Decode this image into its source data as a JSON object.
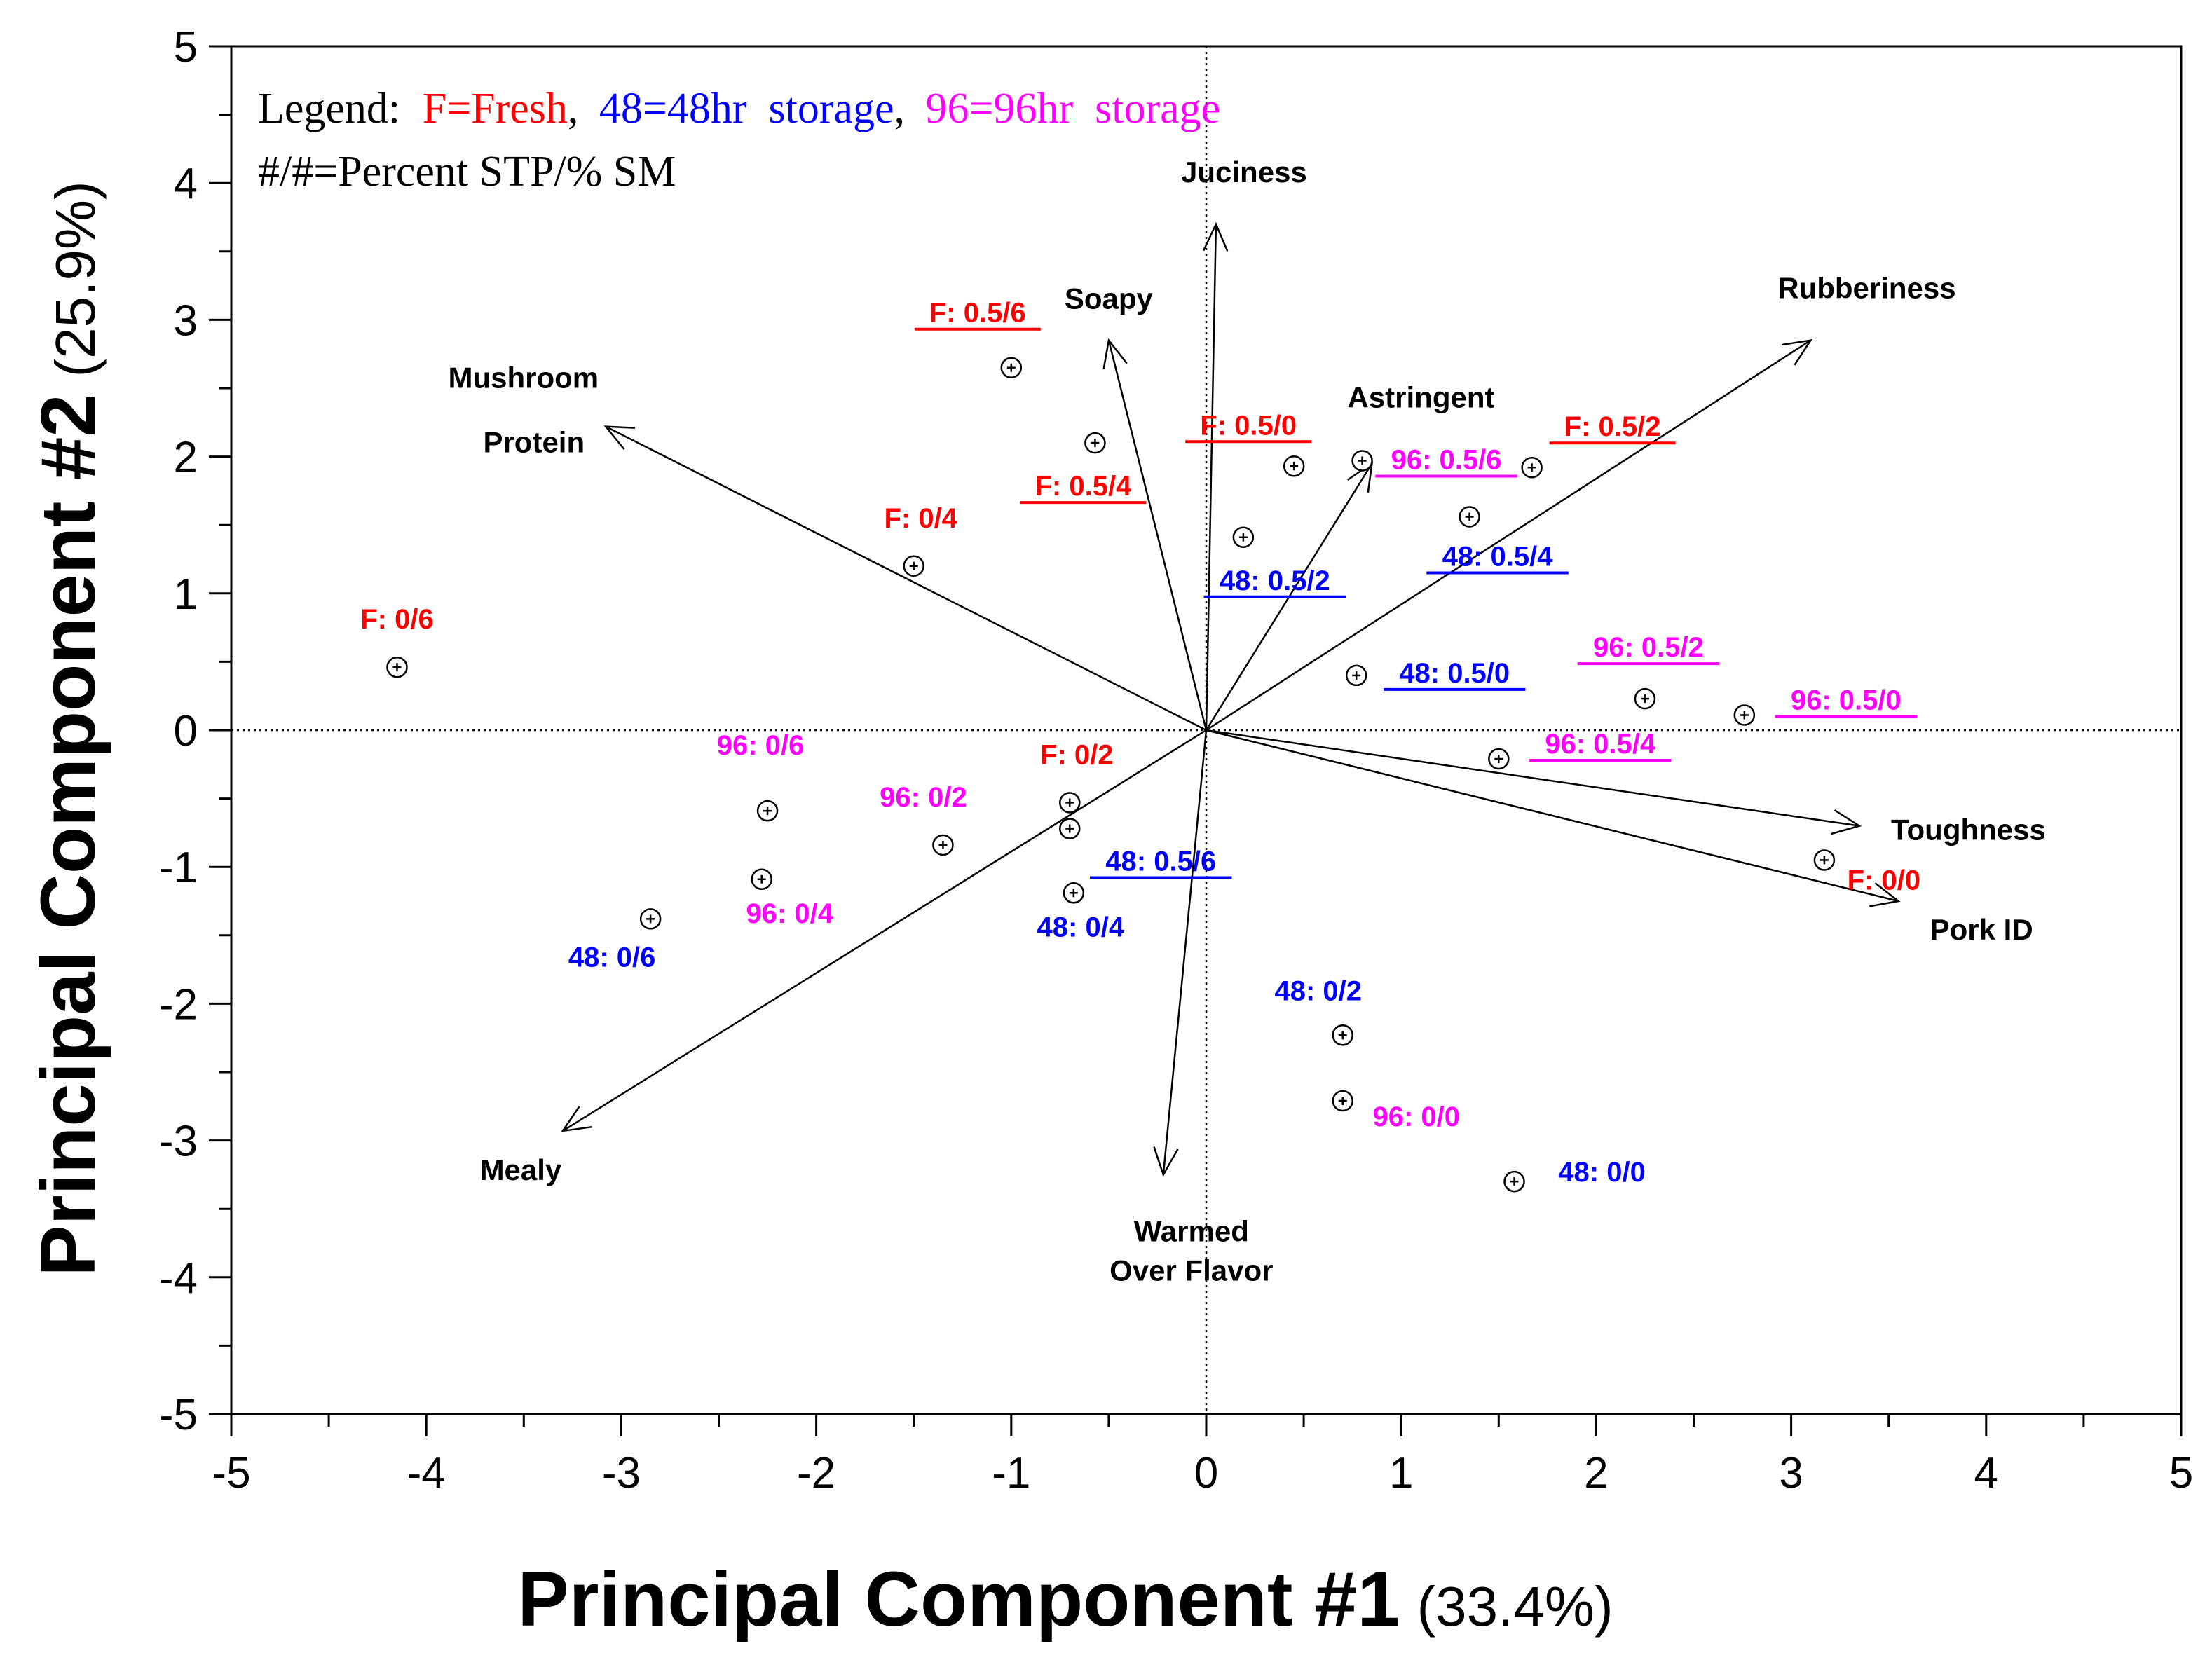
{
  "chart_data": {
    "type": "scatter",
    "subtype": "pca-biplot",
    "xlim": [
      -5,
      5
    ],
    "ylim": [
      -5,
      5
    ],
    "x_ticks": [
      "-5",
      "-4",
      "-3",
      "-2",
      "-1",
      "0",
      "1",
      "2",
      "3",
      "4",
      "5"
    ],
    "y_ticks": [
      "5",
      "4",
      "3",
      "2",
      "1",
      "0",
      "-1",
      "-2",
      "-3",
      "-4",
      "-5"
    ],
    "x_tick_values": [
      -5,
      -4,
      -3,
      -2,
      -1,
      0,
      1,
      2,
      3,
      4,
      5
    ],
    "y_tick_values": [
      5,
      4,
      3,
      2,
      1,
      0,
      -1,
      -2,
      -3,
      -4,
      -5
    ],
    "xlabel": "Principal Component #1",
    "xlabel_pct": "(33.4%)",
    "ylabel": "Principal Component #2",
    "ylabel_pct": "(25.9%)",
    "legend": {
      "prefix": "Legend:",
      "entries": [
        {
          "text": "F=Fresh",
          "color": "#ff0000"
        },
        {
          "text": "48=48hr  storage",
          "color": "#0000ff"
        },
        {
          "text": "96=96hr  storage",
          "color": "#ff00ff"
        }
      ],
      "separator": ",",
      "line2": "#/#=Percent STP/% SM",
      "placement": "top-left"
    },
    "vectors": [
      {
        "name": "Juciness",
        "x": 0.05,
        "y": 3.7
      },
      {
        "name": "Soapy",
        "x": -0.5,
        "y": 2.85
      },
      {
        "name": "Mushroom Protein",
        "lines": [
          "Mushroom",
          "Protein"
        ],
        "x": -3.08,
        "y": 2.22
      },
      {
        "name": "Astringent",
        "x": 0.85,
        "y": 1.95
      },
      {
        "name": "Rubberiness",
        "x": 3.1,
        "y": 2.85
      },
      {
        "name": "Toughness",
        "x": 3.35,
        "y": -0.7
      },
      {
        "name": "Pork ID",
        "x": 3.55,
        "y": -1.25
      },
      {
        "name": "Mealy",
        "x": -3.3,
        "y": -2.93
      },
      {
        "name": "Warmed Over Flavor",
        "lines": [
          "Warmed",
          "Over Flavor"
        ],
        "x": -0.22,
        "y": -3.25
      }
    ],
    "points": [
      {
        "label": "F: 0.5/6",
        "group": "F",
        "x": -1.0,
        "y": 2.65,
        "underline": true
      },
      {
        "label": "F: 0.5/4",
        "group": "F",
        "x": -0.57,
        "y": 2.1,
        "underline": true
      },
      {
        "label": "F: 0.5/0",
        "group": "F",
        "x": 0.45,
        "y": 1.93,
        "underline": true
      },
      {
        "label": "F: 0.5/2",
        "group": "F",
        "x": 1.67,
        "y": 1.92,
        "underline": true
      },
      {
        "label": "F: 0/4",
        "group": "F",
        "x": -1.5,
        "y": 1.2,
        "underline": false
      },
      {
        "label": "F: 0/6",
        "group": "F",
        "x": -4.15,
        "y": 0.46,
        "underline": false
      },
      {
        "label": "F: 0/2",
        "group": "F",
        "x": -0.7,
        "y": -0.53,
        "underline": false
      },
      {
        "label": "F: 0/0",
        "group": "F",
        "x": 3.17,
        "y": -0.95,
        "underline": false
      },
      {
        "label": "96: 0.5/6",
        "group": "96",
        "x": 0.8,
        "y": 1.97,
        "underline": true
      },
      {
        "label": "48: 0.5/4",
        "group": "48",
        "x": 1.35,
        "y": 1.56,
        "underline": true
      },
      {
        "label": "48: 0.5/2",
        "group": "48",
        "x": 0.19,
        "y": 1.41,
        "underline": true
      },
      {
        "label": "48: 0.5/0",
        "group": "48",
        "x": 0.77,
        "y": 0.4,
        "underline": true
      },
      {
        "label": "96: 0.5/2",
        "group": "96",
        "x": 2.25,
        "y": 0.23,
        "underline": true
      },
      {
        "label": "96: 0.5/0",
        "group": "96",
        "x": 2.76,
        "y": 0.11,
        "underline": true
      },
      {
        "label": "96: 0.5/4",
        "group": "96",
        "x": 1.5,
        "y": -0.21,
        "underline": true
      },
      {
        "label": "48: 0.5/6",
        "group": "48",
        "x": -0.7,
        "y": -0.72,
        "underline": true
      },
      {
        "label": "96: 0/6",
        "group": "96",
        "x": -2.25,
        "y": -0.59,
        "underline": false
      },
      {
        "label": "96: 0/2",
        "group": "96",
        "x": -1.35,
        "y": -0.84,
        "underline": false
      },
      {
        "label": "96: 0/4",
        "group": "96",
        "x": -2.28,
        "y": -1.09,
        "underline": false
      },
      {
        "label": "48: 0/6",
        "group": "48",
        "x": -2.85,
        "y": -1.38,
        "underline": false
      },
      {
        "label": "48: 0/4",
        "group": "48",
        "x": -0.68,
        "y": -1.19,
        "underline": false
      },
      {
        "label": "48: 0/2",
        "group": "48",
        "x": 0.7,
        "y": -2.23,
        "underline": false
      },
      {
        "label": "96: 0/0",
        "group": "96",
        "x": 0.7,
        "y": -2.71,
        "underline": false
      },
      {
        "label": "48: 0/0",
        "group": "48",
        "x": 1.58,
        "y": -3.3,
        "underline": false
      }
    ],
    "colors": {
      "F": "#ff0000",
      "48": "#0000ff",
      "96": "#ff00ff",
      "axis": "#000000"
    },
    "grid": false,
    "zero_lines": "dotted"
  }
}
